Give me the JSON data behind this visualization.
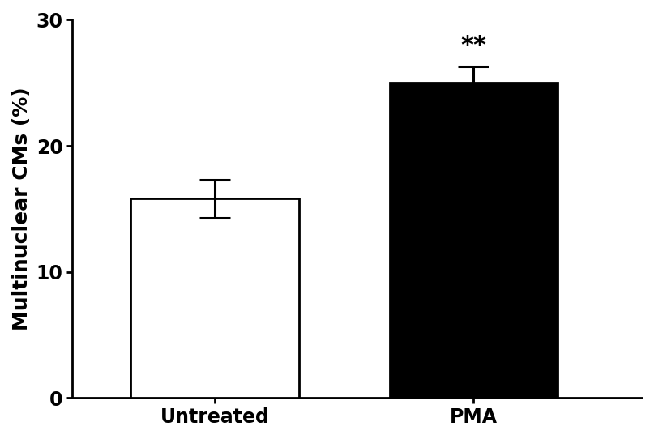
{
  "categories": [
    "Untreated",
    "PMA"
  ],
  "values": [
    15.8,
    25.0
  ],
  "errors": [
    1.5,
    1.3
  ],
  "bar_colors": [
    "#ffffff",
    "#000000"
  ],
  "bar_edge_colors": [
    "#000000",
    "#000000"
  ],
  "bar_width": 0.65,
  "bar_positions": [
    1,
    2
  ],
  "ylabel": "Multinuclear CMs (%)",
  "ylim": [
    0,
    30
  ],
  "yticks": [
    0,
    10,
    20,
    30
  ],
  "significance_label": "**",
  "sig_x": 2,
  "sig_y": 27.0,
  "error_capsize": 14,
  "error_linewidth": 2.2,
  "bar_linewidth": 2.0,
  "tick_fontsize": 17,
  "label_fontsize": 18,
  "sig_fontsize": 22,
  "xlim": [
    0.45,
    2.65
  ],
  "background_color": "#ffffff"
}
